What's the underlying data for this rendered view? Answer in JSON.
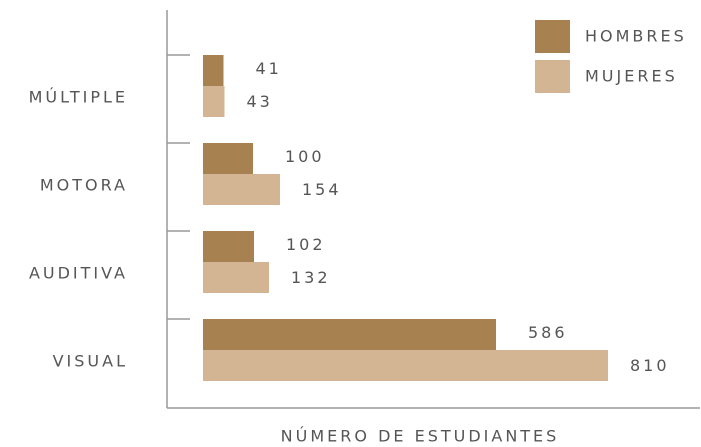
{
  "chart_data": {
    "type": "hbar",
    "x_label": "NÚMERO DE ESTUDIANTES",
    "categories": [
      "MÚLTIPLE",
      "MOTORA",
      "AUDITIVA",
      "VISUAL"
    ],
    "series": [
      {
        "name": "HOMBRES",
        "color": "#a88150",
        "values": [
          41,
          100,
          102,
          586
        ]
      },
      {
        "name": "MUJERES",
        "color": "#d3b594",
        "values": [
          43,
          154,
          132,
          810
        ]
      }
    ],
    "legend": "top-right"
  }
}
